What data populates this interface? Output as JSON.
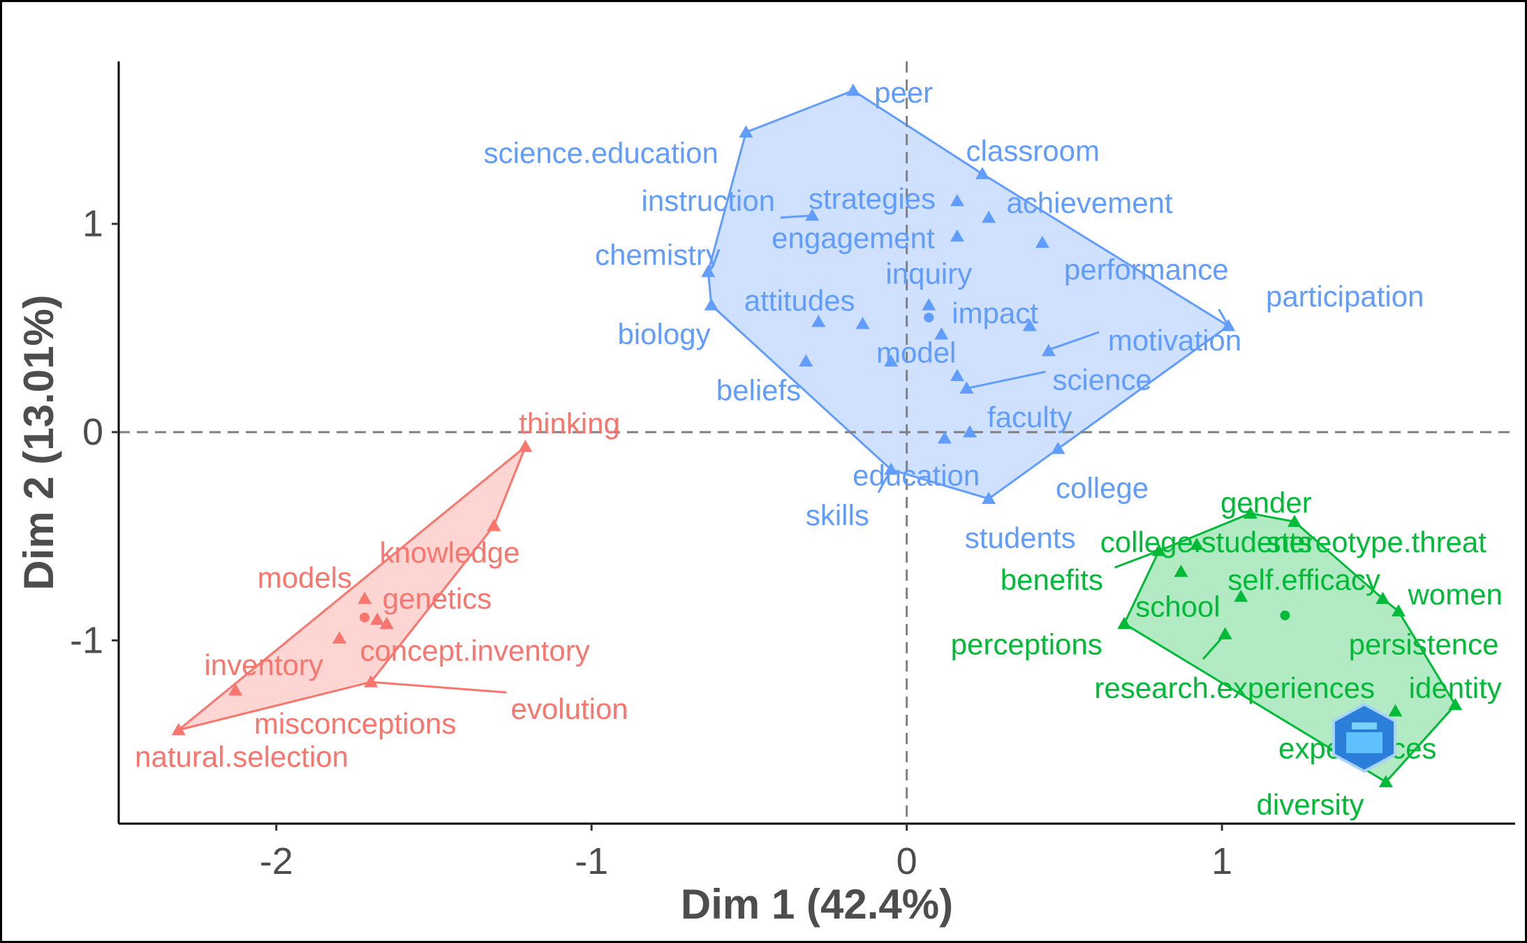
{
  "chart_data": {
    "type": "scatter",
    "title": "",
    "xlabel": "Dim 1 (42.4%)",
    "ylabel": "Dim 2 (13.01%)",
    "xlim": [
      -2.5,
      1.93
    ],
    "ylim": [
      -1.88,
      1.78
    ],
    "x_ticks": [
      -2,
      -1,
      0,
      1
    ],
    "y_ticks": [
      -1,
      0,
      1
    ],
    "x_tick_labels": [
      "-2",
      "-1",
      "0",
      "1"
    ],
    "y_tick_labels": [
      "-1",
      "0",
      "1"
    ],
    "reference_lines": {
      "x": 0,
      "y": 0,
      "style": "dashed"
    },
    "grid": false,
    "legend": "none",
    "clusters": [
      {
        "color": "#f8766d",
        "fill": "#f8766d",
        "centroid": [
          -1.72,
          -0.89
        ],
        "hull": [
          "thinking",
          "knowledge",
          "evolution",
          "natural.selection"
        ],
        "points": [
          {
            "label": "thinking",
            "x": -1.21,
            "y": -0.07
          },
          {
            "label": "knowledge",
            "x": -1.31,
            "y": -0.45
          },
          {
            "label": "models",
            "x": -1.72,
            "y": -0.8
          },
          {
            "label": "genetics",
            "x": -1.68,
            "y": -0.9
          },
          {
            "label": "concept.inventory",
            "x": -1.65,
            "y": -0.92
          },
          {
            "label": "misconceptions",
            "x": -1.8,
            "y": -0.99
          },
          {
            "label": "evolution",
            "x": -1.7,
            "y": -1.2
          },
          {
            "label": "inventory",
            "x": -2.13,
            "y": -1.24
          },
          {
            "label": "natural.selection",
            "x": -2.31,
            "y": -1.43
          }
        ]
      },
      {
        "color": "#619cff",
        "fill": "#619cff",
        "centroid": [
          0.07,
          0.55
        ],
        "hull": [
          "peer",
          "classroom",
          "participation",
          "college",
          "students",
          "skills",
          "biology",
          "chemistry",
          "science.education"
        ],
        "points": [
          {
            "label": "peer",
            "x": -0.17,
            "y": 1.64
          },
          {
            "label": "science.education",
            "x": -0.51,
            "y": 1.44
          },
          {
            "label": "classroom",
            "x": 0.24,
            "y": 1.24
          },
          {
            "label": "instruction",
            "x": -0.3,
            "y": 1.04
          },
          {
            "label": "strategies",
            "x": 0.16,
            "y": 1.11
          },
          {
            "label": "achievement",
            "x": 0.26,
            "y": 1.03
          },
          {
            "label": "engagement",
            "x": 0.16,
            "y": 0.94
          },
          {
            "label": "performance",
            "x": 0.43,
            "y": 0.91
          },
          {
            "label": "chemistry",
            "x": -0.63,
            "y": 0.77
          },
          {
            "label": "inquiry",
            "x": 0.07,
            "y": 0.61
          },
          {
            "label": "biology",
            "x": -0.62,
            "y": 0.61
          },
          {
            "label": "attitudes",
            "x": -0.28,
            "y": 0.53
          },
          {
            "label": "impact",
            "x": -0.14,
            "y": 0.52
          },
          {
            "label": "participation",
            "x": 1.02,
            "y": 0.51
          },
          {
            "label": "motivation",
            "x": 0.39,
            "y": 0.51
          },
          {
            "label": "model",
            "x": 0.11,
            "y": 0.47
          },
          {
            "label": "beliefs",
            "x": -0.32,
            "y": 0.34
          },
          {
            "label": "science",
            "x": -0.05,
            "y": 0.34
          },
          {
            "label": "faculty",
            "x": 0.45,
            "y": 0.39
          },
          {
            "label": "science",
            "x": 0.16,
            "y": 0.27
          },
          {
            "label": "science",
            "x": 0.19,
            "y": 0.21
          },
          {
            "label": "education",
            "x": 0.2,
            "y": 0.0
          },
          {
            "label": "education",
            "x": 0.12,
            "y": -0.03
          },
          {
            "label": "college",
            "x": 0.48,
            "y": -0.08
          },
          {
            "label": "skills",
            "x": -0.05,
            "y": -0.18
          },
          {
            "label": "students",
            "x": 0.26,
            "y": -0.32
          }
        ]
      },
      {
        "color": "#00ba38",
        "fill": "#00ba38",
        "centroid": [
          1.2,
          -0.88
        ],
        "hull": [
          "gender",
          "stereotype.threat",
          "women",
          "persistence",
          "identity",
          "diversity",
          "perceptions",
          "benefits"
        ],
        "points": [
          {
            "label": "gender",
            "x": 1.09,
            "y": -0.39
          },
          {
            "label": "stereotype.threat",
            "x": 1.23,
            "y": -0.43
          },
          {
            "label": "college.students",
            "x": 0.92,
            "y": -0.54
          },
          {
            "label": "benefits",
            "x": 0.8,
            "y": -0.57
          },
          {
            "label": "self.efficacy",
            "x": 0.87,
            "y": -0.67
          },
          {
            "label": "school",
            "x": 1.06,
            "y": -0.79
          },
          {
            "label": "women",
            "x": 1.51,
            "y": -0.8
          },
          {
            "label": "persistence",
            "x": 1.56,
            "y": -0.86
          },
          {
            "label": "perceptions",
            "x": 0.69,
            "y": -0.92
          },
          {
            "label": "research.experiences",
            "x": 1.01,
            "y": -0.97
          },
          {
            "label": "identity",
            "x": 1.74,
            "y": -1.31
          },
          {
            "label": "experiences",
            "x": 1.55,
            "y": -1.34
          },
          {
            "label": "diversity",
            "x": 1.52,
            "y": -1.68
          }
        ]
      }
    ],
    "labels": [
      {
        "text": "thinking",
        "x": -1.07,
        "y": 0.04,
        "cluster": 0,
        "anchor": "middle"
      },
      {
        "text": "knowledge",
        "x": -1.45,
        "y": -0.58,
        "cluster": 0,
        "anchor": "middle"
      },
      {
        "text": "models",
        "x": -1.91,
        "y": -0.7,
        "cluster": 0,
        "anchor": "middle"
      },
      {
        "text": "genetics",
        "x": -1.49,
        "y": -0.8,
        "cluster": 0,
        "anchor": "middle"
      },
      {
        "text": "concept.inventory",
        "x": -1.37,
        "y": -1.05,
        "cluster": 0,
        "anchor": "middle"
      },
      {
        "text": "inventory",
        "x": -2.04,
        "y": -1.12,
        "cluster": 0,
        "anchor": "middle"
      },
      {
        "text": "evolution",
        "x": -1.07,
        "y": -1.33,
        "cluster": 0,
        "anchor": "middle"
      },
      {
        "text": "misconceptions",
        "x": -1.75,
        "y": -1.4,
        "cluster": 0,
        "anchor": "middle"
      },
      {
        "text": "natural.selection",
        "x": -2.11,
        "y": -1.56,
        "cluster": 0,
        "anchor": "middle"
      },
      {
        "text": "peer",
        "x": -0.01,
        "y": 1.63,
        "cluster": 1,
        "anchor": "middle"
      },
      {
        "text": "science.education",
        "x": -0.97,
        "y": 1.34,
        "cluster": 1,
        "anchor": "middle"
      },
      {
        "text": "classroom",
        "x": 0.4,
        "y": 1.35,
        "cluster": 1,
        "anchor": "middle"
      },
      {
        "text": "instruction",
        "x": -0.63,
        "y": 1.11,
        "cluster": 1,
        "anchor": "middle"
      },
      {
        "text": "strategies",
        "x": -0.11,
        "y": 1.12,
        "cluster": 1,
        "anchor": "middle"
      },
      {
        "text": "achievement",
        "x": 0.58,
        "y": 1.1,
        "cluster": 1,
        "anchor": "middle"
      },
      {
        "text": "engagement",
        "x": -0.17,
        "y": 0.93,
        "cluster": 1,
        "anchor": "middle"
      },
      {
        "text": "performance",
        "x": 0.76,
        "y": 0.78,
        "cluster": 1,
        "anchor": "middle"
      },
      {
        "text": "chemistry",
        "x": -0.79,
        "y": 0.85,
        "cluster": 1,
        "anchor": "middle"
      },
      {
        "text": "inquiry",
        "x": 0.07,
        "y": 0.76,
        "cluster": 1,
        "anchor": "middle"
      },
      {
        "text": "participation",
        "x": 1.39,
        "y": 0.65,
        "cluster": 1,
        "anchor": "middle"
      },
      {
        "text": "attitudes",
        "x": -0.34,
        "y": 0.63,
        "cluster": 1,
        "anchor": "middle"
      },
      {
        "text": "impact",
        "x": 0.28,
        "y": 0.57,
        "cluster": 1,
        "anchor": "middle"
      },
      {
        "text": "biology",
        "x": -0.77,
        "y": 0.47,
        "cluster": 1,
        "anchor": "middle"
      },
      {
        "text": "motivation",
        "x": 0.85,
        "y": 0.44,
        "cluster": 1,
        "anchor": "middle"
      },
      {
        "text": "model",
        "x": 0.03,
        "y": 0.38,
        "cluster": 1,
        "anchor": "middle"
      },
      {
        "text": "science",
        "x": 0.62,
        "y": 0.25,
        "cluster": 1,
        "anchor": "middle"
      },
      {
        "text": "beliefs",
        "x": -0.47,
        "y": 0.2,
        "cluster": 1,
        "anchor": "middle"
      },
      {
        "text": "faculty",
        "x": 0.39,
        "y": 0.07,
        "cluster": 1,
        "anchor": "middle"
      },
      {
        "text": "education",
        "x": 0.03,
        "y": -0.21,
        "cluster": 1,
        "anchor": "middle"
      },
      {
        "text": "college",
        "x": 0.62,
        "y": -0.27,
        "cluster": 1,
        "anchor": "middle"
      },
      {
        "text": "skills",
        "x": -0.22,
        "y": -0.4,
        "cluster": 1,
        "anchor": "middle"
      },
      {
        "text": "students",
        "x": 0.36,
        "y": -0.51,
        "cluster": 1,
        "anchor": "middle"
      },
      {
        "text": "gender",
        "x": 1.14,
        "y": -0.34,
        "cluster": 2,
        "anchor": "middle"
      },
      {
        "text": "college.students",
        "x": 0.95,
        "y": -0.53,
        "cluster": 2,
        "anchor": "middle"
      },
      {
        "text": "stereotype.threat",
        "x": 1.49,
        "y": -0.53,
        "cluster": 2,
        "anchor": "middle"
      },
      {
        "text": "benefits",
        "x": 0.46,
        "y": -0.71,
        "cluster": 2,
        "anchor": "middle"
      },
      {
        "text": "self.efficacy",
        "x": 1.26,
        "y": -0.71,
        "cluster": 2,
        "anchor": "middle"
      },
      {
        "text": "school",
        "x": 0.86,
        "y": -0.84,
        "cluster": 2,
        "anchor": "middle"
      },
      {
        "text": "women",
        "x": 1.74,
        "y": -0.78,
        "cluster": 2,
        "anchor": "middle"
      },
      {
        "text": "perceptions",
        "x": 0.38,
        "y": -1.02,
        "cluster": 2,
        "anchor": "middle"
      },
      {
        "text": "persistence",
        "x": 1.64,
        "y": -1.02,
        "cluster": 2,
        "anchor": "middle"
      },
      {
        "text": "research.experiences",
        "x": 1.04,
        "y": -1.23,
        "cluster": 2,
        "anchor": "middle"
      },
      {
        "text": "identity",
        "x": 1.74,
        "y": -1.23,
        "cluster": 2,
        "anchor": "middle"
      },
      {
        "text": "experiences",
        "x": 1.43,
        "y": -1.52,
        "cluster": 2,
        "anchor": "middle"
      },
      {
        "text": "diversity",
        "x": 1.28,
        "y": -1.79,
        "cluster": 2,
        "anchor": "middle"
      }
    ],
    "leaders": [
      {
        "from": [
          -1.07,
          0.04
        ],
        "to": [
          -1.21,
          -0.07
        ],
        "cluster": 0,
        "hidden": true
      },
      {
        "from": [
          -1.27,
          -1.25
        ],
        "to": [
          -1.7,
          -1.2
        ],
        "cluster": 0
      },
      {
        "from": [
          -0.4,
          1.03
        ],
        "to": [
          -0.3,
          1.04
        ],
        "cluster": 1
      },
      {
        "from": [
          0.99,
          0.59
        ],
        "to": [
          1.02,
          0.51
        ],
        "cluster": 1
      },
      {
        "from": [
          0.61,
          0.48
        ],
        "to": [
          0.44,
          0.39
        ],
        "cluster": 1
      },
      {
        "from": [
          0.44,
          0.29
        ],
        "to": [
          0.19,
          0.21
        ],
        "cluster": 1
      },
      {
        "from": [
          -0.09,
          -0.29
        ],
        "to": [
          -0.05,
          -0.18
        ],
        "cluster": 1
      },
      {
        "from": [
          0.66,
          -0.65
        ],
        "to": [
          0.8,
          -0.57
        ],
        "cluster": 2
      },
      {
        "from": [
          0.94,
          -1.09
        ],
        "to": [
          1.01,
          -0.97
        ],
        "cluster": 2
      }
    ]
  }
}
